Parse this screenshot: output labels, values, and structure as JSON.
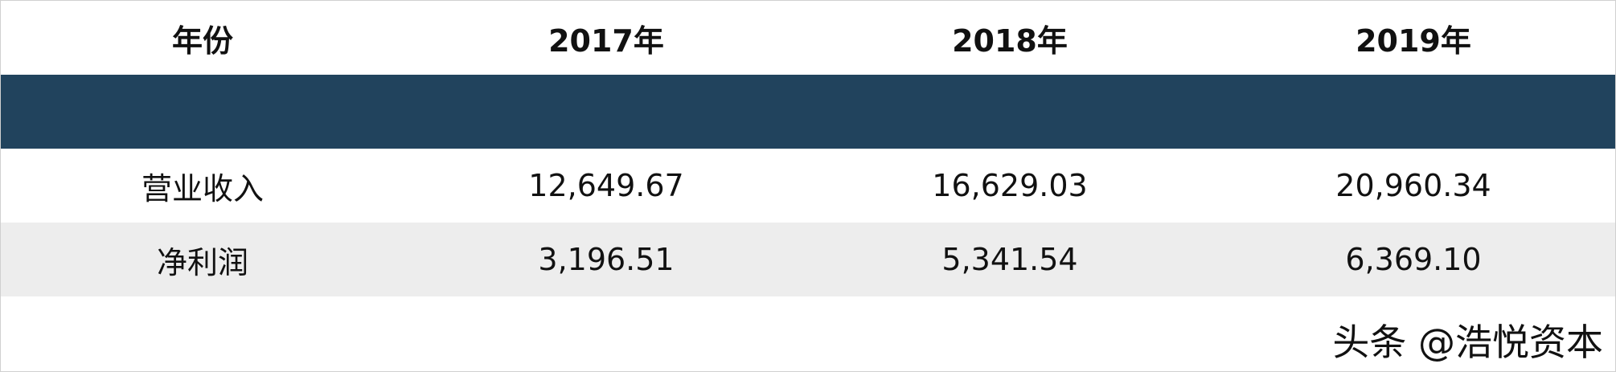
{
  "table": {
    "header": [
      "年份",
      "2017年",
      "2018年",
      "2019年"
    ],
    "rows": [
      [
        "营业收入",
        "12,649.67",
        "16,629.03",
        "20,960.34"
      ],
      [
        "净利润",
        "3,196.51",
        "5,341.54",
        "6,369.10"
      ]
    ]
  },
  "watermark": "头条 @浩悦资本"
}
